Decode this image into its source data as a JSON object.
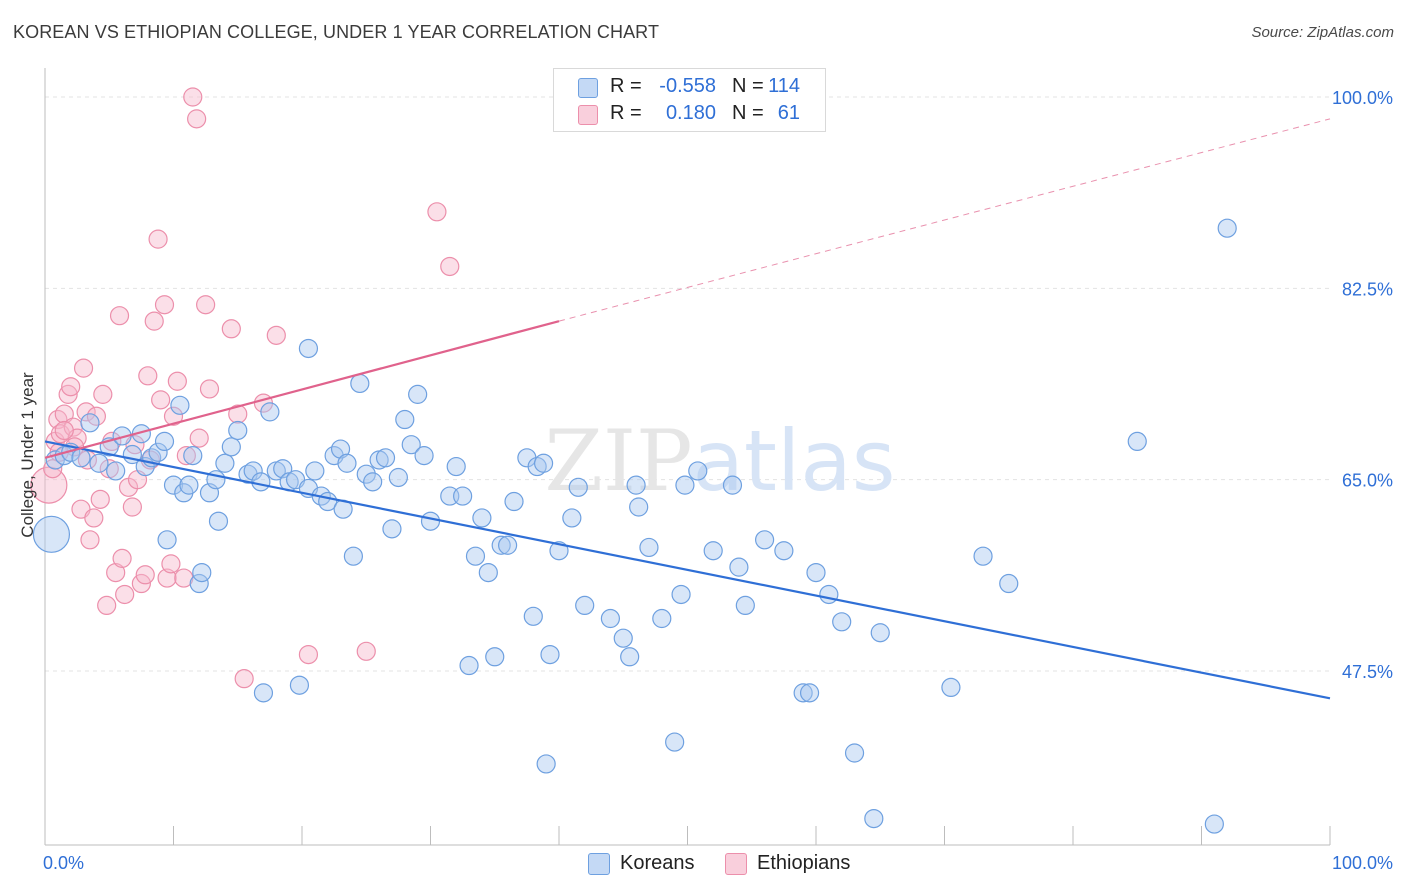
{
  "header": {
    "title": "KOREAN VS ETHIOPIAN COLLEGE, UNDER 1 YEAR CORRELATION CHART",
    "source": "Source: ZipAtlas.com"
  },
  "legend": {
    "rows": [
      {
        "r_label": "R =",
        "r_value": "-0.558",
        "n_label": "N =",
        "n_value": "114"
      },
      {
        "r_label": "R =",
        "r_value": "0.180",
        "n_label": "N =",
        "n_value": "61"
      }
    ],
    "series_names": [
      "Koreans",
      "Ethiopians"
    ]
  },
  "colors": {
    "korean_fill": "#a9c8f0",
    "korean_stroke": "#6ea0e0",
    "korean_line": "#2f6fd6",
    "ethiopian_fill": "#f6b8cb",
    "ethiopian_stroke": "#ec8fab",
    "ethiopian_line": "#e0628c",
    "axis_label": "#2f6fd6",
    "grid": "#e3e3e3"
  },
  "chart_data": {
    "type": "scatter",
    "title": "KOREAN VS ETHIOPIAN COLLEGE, UNDER 1 YEAR CORRELATION CHART",
    "xlabel": "",
    "ylabel": "College, Under 1 year",
    "xlim": [
      0,
      100
    ],
    "ylim": [
      30,
      100
    ],
    "x_tick_labels": [
      "0.0%",
      "100.0%"
    ],
    "y_ticks": [
      47.5,
      65.0,
      82.5,
      100.0
    ],
    "y_tick_labels": [
      "47.5%",
      "65.0%",
      "82.5%",
      "100.0%"
    ],
    "watermark": "ZIPatlas",
    "series": [
      {
        "name": "Koreans",
        "r": -0.558,
        "n": 114,
        "trend": {
          "x": [
            0,
            100
          ],
          "y": [
            68.5,
            45.0
          ],
          "style": "solid"
        },
        "points": [
          [
            0.8,
            66.8
          ],
          [
            1.5,
            67.2
          ],
          [
            2.0,
            67.5
          ],
          [
            2.8,
            67.0
          ],
          [
            3.5,
            70.2
          ],
          [
            4.2,
            66.5
          ],
          [
            5.0,
            68.0
          ],
          [
            5.5,
            65.8
          ],
          [
            6.0,
            69.0
          ],
          [
            6.8,
            67.3
          ],
          [
            7.5,
            69.2
          ],
          [
            7.8,
            66.2
          ],
          [
            8.3,
            67.0
          ],
          [
            8.8,
            67.5
          ],
          [
            9.3,
            68.5
          ],
          [
            9.5,
            59.5
          ],
          [
            10.0,
            64.5
          ],
          [
            10.5,
            71.8
          ],
          [
            10.8,
            63.8
          ],
          [
            11.2,
            64.5
          ],
          [
            11.5,
            67.2
          ],
          [
            12.0,
            55.5
          ],
          [
            12.2,
            56.5
          ],
          [
            12.8,
            63.8
          ],
          [
            13.3,
            65.0
          ],
          [
            13.5,
            61.2
          ],
          [
            14.0,
            66.5
          ],
          [
            14.5,
            68.0
          ],
          [
            15.0,
            69.5
          ],
          [
            15.8,
            65.5
          ],
          [
            16.2,
            65.8
          ],
          [
            16.8,
            64.8
          ],
          [
            17.0,
            45.5
          ],
          [
            17.5,
            71.2
          ],
          [
            18.0,
            65.8
          ],
          [
            18.5,
            66.0
          ],
          [
            19.0,
            64.8
          ],
          [
            19.5,
            65.0
          ],
          [
            19.8,
            46.2
          ],
          [
            20.5,
            64.2
          ],
          [
            21.0,
            65.8
          ],
          [
            21.5,
            63.5
          ],
          [
            22.0,
            63.0
          ],
          [
            22.5,
            67.2
          ],
          [
            23.0,
            67.8
          ],
          [
            23.2,
            62.3
          ],
          [
            23.5,
            66.5
          ],
          [
            24.0,
            58.0
          ],
          [
            24.5,
            73.8
          ],
          [
            25.0,
            65.5
          ],
          [
            25.5,
            64.8
          ],
          [
            26.0,
            66.8
          ],
          [
            26.5,
            67.0
          ],
          [
            27.0,
            60.5
          ],
          [
            27.5,
            65.2
          ],
          [
            28.0,
            70.5
          ],
          [
            28.5,
            68.2
          ],
          [
            29.0,
            72.8
          ],
          [
            29.5,
            67.2
          ],
          [
            30.0,
            61.2
          ],
          [
            31.5,
            63.5
          ],
          [
            32.0,
            66.2
          ],
          [
            32.5,
            63.5
          ],
          [
            33.0,
            48.0
          ],
          [
            33.5,
            58.0
          ],
          [
            34.0,
            61.5
          ],
          [
            34.5,
            56.5
          ],
          [
            35.0,
            48.8
          ],
          [
            35.5,
            59.0
          ],
          [
            36.0,
            59.0
          ],
          [
            36.5,
            63.0
          ],
          [
            37.5,
            67.0
          ],
          [
            38.0,
            52.5
          ],
          [
            38.3,
            66.2
          ],
          [
            38.8,
            66.5
          ],
          [
            39.0,
            39.0
          ],
          [
            39.3,
            49.0
          ],
          [
            40.0,
            58.5
          ],
          [
            41.0,
            61.5
          ],
          [
            41.5,
            64.3
          ],
          [
            42.0,
            53.5
          ],
          [
            44.0,
            52.3
          ],
          [
            45.0,
            50.5
          ],
          [
            45.5,
            48.8
          ],
          [
            46.0,
            64.5
          ],
          [
            46.2,
            62.5
          ],
          [
            47.0,
            58.8
          ],
          [
            48.0,
            52.3
          ],
          [
            49.0,
            41.0
          ],
          [
            49.5,
            54.5
          ],
          [
            49.8,
            64.5
          ],
          [
            50.8,
            65.8
          ],
          [
            52.0,
            58.5
          ],
          [
            53.5,
            64.5
          ],
          [
            54.0,
            57.0
          ],
          [
            54.5,
            53.5
          ],
          [
            56.0,
            59.5
          ],
          [
            57.5,
            58.5
          ],
          [
            59.0,
            45.5
          ],
          [
            59.5,
            45.5
          ],
          [
            60.0,
            56.5
          ],
          [
            61.0,
            54.5
          ],
          [
            62.0,
            52.0
          ],
          [
            63.0,
            40.0
          ],
          [
            64.5,
            34.0
          ],
          [
            65.0,
            51.0
          ],
          [
            70.5,
            46.0
          ],
          [
            73.0,
            58.0
          ],
          [
            75.0,
            55.5
          ],
          [
            85.0,
            68.5
          ],
          [
            91.0,
            33.5
          ],
          [
            92.0,
            88.0
          ],
          [
            20.5,
            77.0
          ],
          [
            0.5,
            60.0
          ]
        ]
      },
      {
        "name": "Ethiopians",
        "r": 0.18,
        "n": 61,
        "trend": {
          "x": [
            0,
            40,
            100
          ],
          "y": [
            67.0,
            79.5,
            98.0
          ],
          "style": "solid-then-dashed"
        },
        "points": [
          [
            0.3,
            64.5
          ],
          [
            0.8,
            68.5
          ],
          [
            1.0,
            70.5
          ],
          [
            1.2,
            69.2
          ],
          [
            1.5,
            71.0
          ],
          [
            1.8,
            72.8
          ],
          [
            2.0,
            73.5
          ],
          [
            2.2,
            69.8
          ],
          [
            2.5,
            68.8
          ],
          [
            2.8,
            62.3
          ],
          [
            3.0,
            75.2
          ],
          [
            3.2,
            71.2
          ],
          [
            3.5,
            59.5
          ],
          [
            3.8,
            61.5
          ],
          [
            4.0,
            70.8
          ],
          [
            4.3,
            63.2
          ],
          [
            4.5,
            72.8
          ],
          [
            4.8,
            53.5
          ],
          [
            5.0,
            66.0
          ],
          [
            5.2,
            68.5
          ],
          [
            5.5,
            56.5
          ],
          [
            5.8,
            80.0
          ],
          [
            6.0,
            57.8
          ],
          [
            6.2,
            54.5
          ],
          [
            6.5,
            64.3
          ],
          [
            6.8,
            62.5
          ],
          [
            7.0,
            68.2
          ],
          [
            7.2,
            65.0
          ],
          [
            7.5,
            55.5
          ],
          [
            7.8,
            56.3
          ],
          [
            8.0,
            74.5
          ],
          [
            8.2,
            66.8
          ],
          [
            8.5,
            79.5
          ],
          [
            8.8,
            87.0
          ],
          [
            9.0,
            72.3
          ],
          [
            9.3,
            81.0
          ],
          [
            9.5,
            56.0
          ],
          [
            9.8,
            57.3
          ],
          [
            10.0,
            70.8
          ],
          [
            10.3,
            74.0
          ],
          [
            10.8,
            56.0
          ],
          [
            11.0,
            67.2
          ],
          [
            11.5,
            100.0
          ],
          [
            11.8,
            98.0
          ],
          [
            12.0,
            68.8
          ],
          [
            12.5,
            81.0
          ],
          [
            12.8,
            73.3
          ],
          [
            14.5,
            78.8
          ],
          [
            15.0,
            71.0
          ],
          [
            15.5,
            46.8
          ],
          [
            17.0,
            72.0
          ],
          [
            18.0,
            78.2
          ],
          [
            20.5,
            49.0
          ],
          [
            25.0,
            49.3
          ],
          [
            30.5,
            89.5
          ],
          [
            31.5,
            84.5
          ],
          [
            1.5,
            69.5
          ],
          [
            2.3,
            68.0
          ],
          [
            3.3,
            66.8
          ],
          [
            0.6,
            66.0
          ],
          [
            1.1,
            67.5
          ]
        ]
      }
    ]
  }
}
